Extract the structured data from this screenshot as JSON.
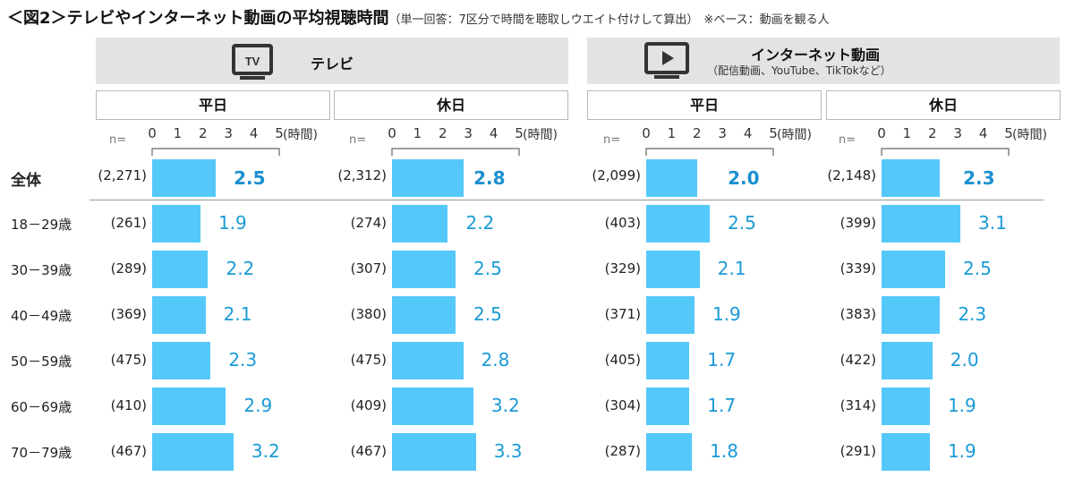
{
  "header": {
    "title": "＜図2＞テレビやインターネット動画の平均視聴時間",
    "subtitle": "（単一回答：7区分で時間を聴取しウエイト付けして算出）",
    "note": "※ベース：動画を観る人"
  },
  "media": [
    {
      "label": "テレビ",
      "sublabel": "",
      "icon": "tv-icon"
    },
    {
      "label": "インターネット動画",
      "sublabel": "（配信動画、YouTube、TikTokなど）",
      "icon": "video-play-icon"
    }
  ],
  "chart_data": {
    "type": "bar",
    "orientation": "horizontal",
    "categories": [
      "全体",
      "18－29歳",
      "30－39歳",
      "40－49歳",
      "50－59歳",
      "60－69歳",
      "70－79歳"
    ],
    "axis": {
      "ticks": [
        "0",
        "1",
        "2",
        "3",
        "4",
        "5"
      ],
      "unit": "(時間)",
      "range": [
        0,
        5
      ],
      "n_prefix": "n="
    },
    "series": [
      {
        "name": "テレビ 平日",
        "media": "テレビ",
        "day": "平日",
        "n": [
          "(2,271)",
          "(261)",
          "(289)",
          "(369)",
          "(475)",
          "(410)",
          "(467)"
        ],
        "values": [
          2.5,
          1.9,
          2.2,
          2.1,
          2.3,
          2.9,
          3.2
        ],
        "labels": [
          "2.5",
          "1.9",
          "2.2",
          "2.1",
          "2.3",
          "2.9",
          "3.2"
        ]
      },
      {
        "name": "テレビ 休日",
        "media": "テレビ",
        "day": "休日",
        "n": [
          "(2,312)",
          "(274)",
          "(307)",
          "(380)",
          "(475)",
          "(409)",
          "(467)"
        ],
        "values": [
          2.8,
          2.2,
          2.5,
          2.5,
          2.8,
          3.2,
          3.3
        ],
        "labels": [
          "2.8",
          "2.2",
          "2.5",
          "2.5",
          "2.8",
          "3.2",
          "3.3"
        ]
      },
      {
        "name": "インターネット動画 平日",
        "media": "インターネット動画",
        "day": "平日",
        "n": [
          "(2,099)",
          "(403)",
          "(329)",
          "(371)",
          "(405)",
          "(304)",
          "(287)"
        ],
        "values": [
          2.0,
          2.5,
          2.1,
          1.9,
          1.7,
          1.7,
          1.8
        ],
        "labels": [
          "2.0",
          "2.5",
          "2.1",
          "1.9",
          "1.7",
          "1.7",
          "1.8"
        ]
      },
      {
        "name": "インターネット動画 休日",
        "media": "インターネット動画",
        "day": "休日",
        "n": [
          "(2,148)",
          "(399)",
          "(339)",
          "(383)",
          "(422)",
          "(314)",
          "(291)"
        ],
        "values": [
          2.3,
          3.1,
          2.5,
          2.3,
          2.0,
          1.9,
          1.9
        ],
        "labels": [
          "2.3",
          "3.1",
          "2.5",
          "2.3",
          "2.0",
          "1.9",
          "1.9"
        ]
      }
    ],
    "colors": {
      "bar": "#55c8fa",
      "value_text": "#1a9ad6"
    }
  }
}
